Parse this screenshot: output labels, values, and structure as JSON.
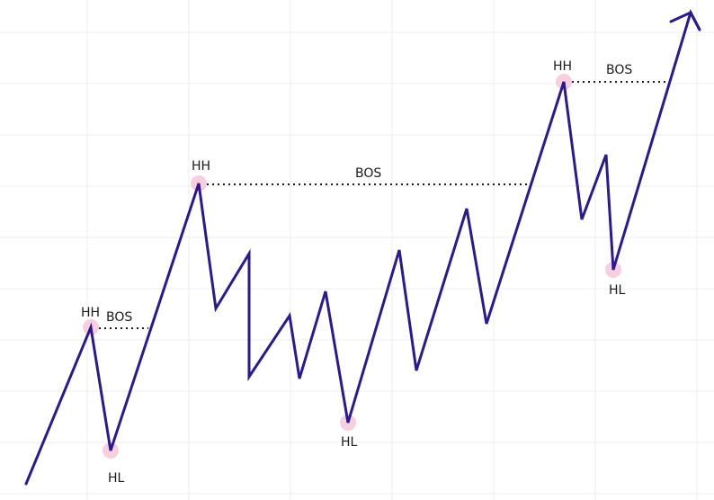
{
  "diagram": {
    "labels": {
      "hh": "HH",
      "hl": "HL",
      "bos": "BOS"
    },
    "colors": {
      "background": "#ffffff",
      "grid": "#ececec",
      "price_line": "#2e1a87",
      "swing_marker": "#f6cfe0",
      "bos_line": "#1a1a1a"
    }
  }
}
